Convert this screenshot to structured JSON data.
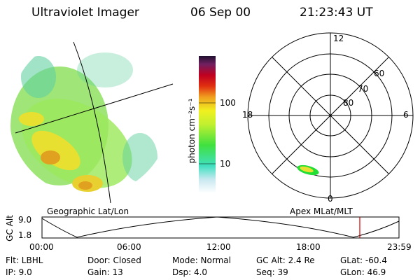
{
  "header": {
    "title": "Ultraviolet Imager",
    "date": "06 Sep 00",
    "time": "21:23:43 UT"
  },
  "colorbar": {
    "label": "photon cm⁻²s⁻¹",
    "ticks": [
      "100",
      "10"
    ]
  },
  "polar_plot": {
    "mlt_labels": {
      "top": "12",
      "left": "18",
      "right": "6",
      "bottom": "0"
    },
    "lat_labels": [
      "60",
      "70",
      "80"
    ]
  },
  "panels": {
    "geo_caption": "Geographic Lat/Lon",
    "apex_caption": "Apex MLat/MLT"
  },
  "altitude_plot": {
    "axis_label": "GC Alt",
    "y_ticks": [
      "9.0",
      "1.8"
    ],
    "x_ticks": [
      "00:00",
      "06:00",
      "12:00",
      "18:00",
      "23:59"
    ]
  },
  "info": {
    "flt": "Flt: LBHL",
    "ip": "IP:  9.0",
    "door": "Door: Closed",
    "gain": "Gain: 13",
    "mode": "Mode: Normal",
    "dsp": "Dsp:    4.0",
    "gc_alt": "GC Alt: 2.4 Re",
    "seq": "Seq: 39",
    "glat": "GLat:  -60.4",
    "glon": "GLon:   46.9"
  },
  "colors": {
    "marker": "#cc0000",
    "oval": "#22dd33"
  }
}
